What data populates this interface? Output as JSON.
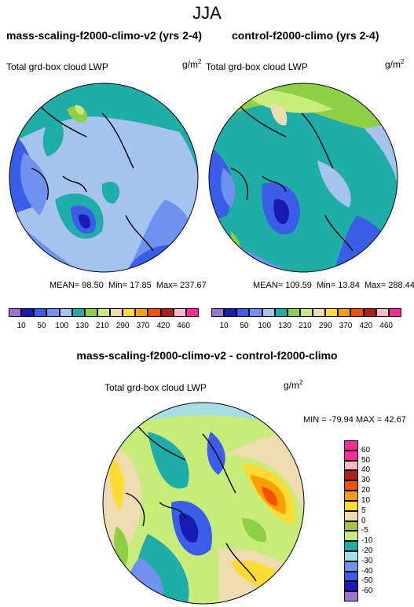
{
  "season": "JJA",
  "panels": [
    {
      "title": "mass-scaling-f2000-climo-v2 (yrs 2-4)",
      "variable": "Total grd-box cloud LWP",
      "units": "g/m",
      "units_exp": "2",
      "stats": {
        "mean_label": "MEAN=",
        "mean": "98.50",
        "min_label": "Min=",
        "min": "17.85",
        "max_label": "Max=",
        "max": "237.67"
      }
    },
    {
      "title": "control-f2000-climo (yrs 2-4)",
      "variable": "Total grd-box cloud LWP",
      "units": "g/m",
      "units_exp": "2",
      "stats": {
        "mean_label": "MEAN=",
        "mean": "109.59",
        "min_label": "Min=",
        "min": "13.84",
        "max_label": "Max=",
        "max": "288.44"
      }
    }
  ],
  "diff": {
    "title": "mass-scaling-f2000-climo-v2 - control-f2000-climo",
    "variable": "Total grd-box cloud LWP",
    "units": "g/m",
    "units_exp": "2",
    "minmax": "MIN = -79.94 MAX =  42.67"
  },
  "colorbar_abs": {
    "labels": [
      "10",
      "50",
      "100",
      "130",
      "210",
      "290",
      "370",
      "420",
      "460"
    ],
    "colors": [
      "#a172d6",
      "#1a1ab5",
      "#3b5ee8",
      "#6f91ef",
      "#a6c2ee",
      "#1fada8",
      "#8fcf45",
      "#c8ec7a",
      "#eedcb0",
      "#ffdc33",
      "#f9a000",
      "#f05000",
      "#b02018",
      "#ffb8c8",
      "#ff2a9a"
    ]
  },
  "colorbar_diff": {
    "labels": [
      "60",
      "50",
      "40",
      "30",
      "20",
      "10",
      "5",
      "0",
      "-5",
      "-10",
      "-20",
      "-30",
      "-40",
      "-50",
      "-60"
    ],
    "colors": [
      "#ff2a9a",
      "#ffb8c8",
      "#b02018",
      "#f05000",
      "#f9a000",
      "#ffdc33",
      "#eedcb0",
      "#a4c63a",
      "#c8ec7a",
      "#1fada8",
      "#a6dde6",
      "#6f91ef",
      "#3b5ee8",
      "#1a1ab5",
      "#a172d6"
    ]
  }
}
